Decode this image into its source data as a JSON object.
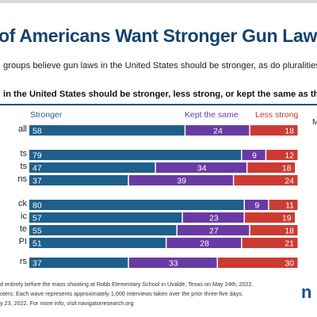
{
  "slide": {
    "title": "of Americans Want Stronger Gun Laws",
    "subtitle": "groups believe gun laws in the United States should be stronger, as do pluralities of ind",
    "question": "in the United States should be stronger, less strong, or kept the same as they are",
    "legend_edge": "M",
    "footnotes": [
      "d entirely before the mass shooting at Robb Elementary School in Uvalde, Texas on May 24th, 2022.",
      "oters; Each wave represents approximately 1,000 interviews taken over the prior three-five days.",
      "y 23, 2022. For more info, visit navigatorresearch.org"
    ],
    "logo": "n"
  },
  "colors": {
    "stronger": "#1f5f8b",
    "same": "#6a3aa4",
    "less": "#cc3b32",
    "title": "#16426e"
  },
  "chart_data": {
    "type": "bar",
    "orientation": "horizontal",
    "stacked": true,
    "series": [
      {
        "name": "Stronger",
        "values": [
          58,
          79,
          47,
          37,
          80,
          57,
          55,
          51,
          37
        ]
      },
      {
        "name": "Kept the same",
        "values": [
          24,
          9,
          34,
          39,
          9,
          23,
          27,
          28,
          33
        ]
      },
      {
        "name": "Less strong",
        "values": [
          18,
          12,
          18,
          24,
          11,
          19,
          18,
          21,
          30
        ]
      }
    ],
    "categories": [
      "all",
      "ts",
      "ts",
      "ns",
      "ck",
      "ic",
      "te",
      "PI",
      "rs"
    ],
    "legend_position": "top",
    "xlim": [
      0,
      100
    ]
  }
}
